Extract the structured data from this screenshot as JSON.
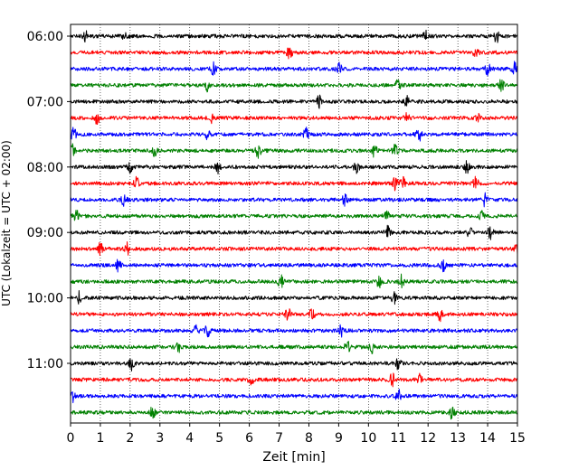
{
  "chart_data": {
    "type": "line",
    "subtype": "helicorder",
    "xlabel": "Zeit  [min]",
    "ylabel": "UTC (Lokalzeit = UTC + 02:00)",
    "xlim": [
      0,
      15
    ],
    "x_ticks": [
      "0",
      "1",
      "2",
      "3",
      "4",
      "5",
      "6",
      "7",
      "8",
      "9",
      "10",
      "11",
      "12",
      "13",
      "14",
      "15"
    ],
    "y_tick_labels": [
      "06:00",
      "07:00",
      "08:00",
      "09:00",
      "10:00",
      "11:00"
    ],
    "grid": "vertical dotted lines at each minute",
    "trace_interval_minutes": 15,
    "start_time": "06:00",
    "trace_count": 24,
    "trace_colors": [
      "#000000",
      "#ff0000",
      "#0000ff",
      "#008000"
    ],
    "series": [
      {
        "start": "06:00",
        "events_min": [
          0.5,
          1.85,
          11.9,
          14.3
        ]
      },
      {
        "start": "06:15",
        "events_min": [
          7.35,
          13.6
        ]
      },
      {
        "start": "06:30",
        "events_min": [
          4.8,
          9.0,
          14.0,
          14.9
        ]
      },
      {
        "start": "06:45",
        "events_min": [
          4.6,
          11.0,
          14.45
        ]
      },
      {
        "start": "07:00",
        "events_min": [
          8.35,
          11.3
        ]
      },
      {
        "start": "07:15",
        "events_min": [
          0.9,
          4.7,
          11.3,
          13.7
        ]
      },
      {
        "start": "07:30",
        "events_min": [
          0.1,
          4.6,
          7.9,
          11.7
        ]
      },
      {
        "start": "07:45",
        "events_min": [
          0.05,
          2.8,
          6.3,
          10.2,
          10.9
        ]
      },
      {
        "start": "08:00",
        "events_min": [
          2.0,
          4.95,
          9.6,
          13.3
        ]
      },
      {
        "start": "08:15",
        "events_min": [
          2.2,
          10.9,
          11.15,
          13.6
        ]
      },
      {
        "start": "08:30",
        "events_min": [
          1.8,
          9.2,
          13.9
        ]
      },
      {
        "start": "08:45",
        "events_min": [
          0.2,
          10.6,
          13.8
        ]
      },
      {
        "start": "09:00",
        "events_min": [
          10.65,
          13.4,
          14.1
        ]
      },
      {
        "start": "09:15",
        "events_min": [
          1.0,
          1.9,
          15.0
        ]
      },
      {
        "start": "09:30",
        "events_min": [
          1.6,
          12.5
        ]
      },
      {
        "start": "09:45",
        "events_min": [
          7.05,
          10.35,
          11.1
        ]
      },
      {
        "start": "10:00",
        "events_min": [
          0.3,
          10.85
        ]
      },
      {
        "start": "10:15",
        "events_min": [
          7.3,
          8.1,
          12.4
        ]
      },
      {
        "start": "10:30",
        "events_min": [
          4.2,
          4.6,
          9.1
        ]
      },
      {
        "start": "10:45",
        "events_min": [
          3.6,
          9.3,
          10.1
        ]
      },
      {
        "start": "11:00",
        "events_min": [
          2.05,
          11.0
        ]
      },
      {
        "start": "11:15",
        "events_min": [
          6.05,
          10.8,
          11.7
        ]
      },
      {
        "start": "11:30",
        "events_min": [
          0.05,
          11.0
        ]
      },
      {
        "start": "11:45",
        "events_min": [
          2.75,
          12.8
        ]
      }
    ]
  }
}
